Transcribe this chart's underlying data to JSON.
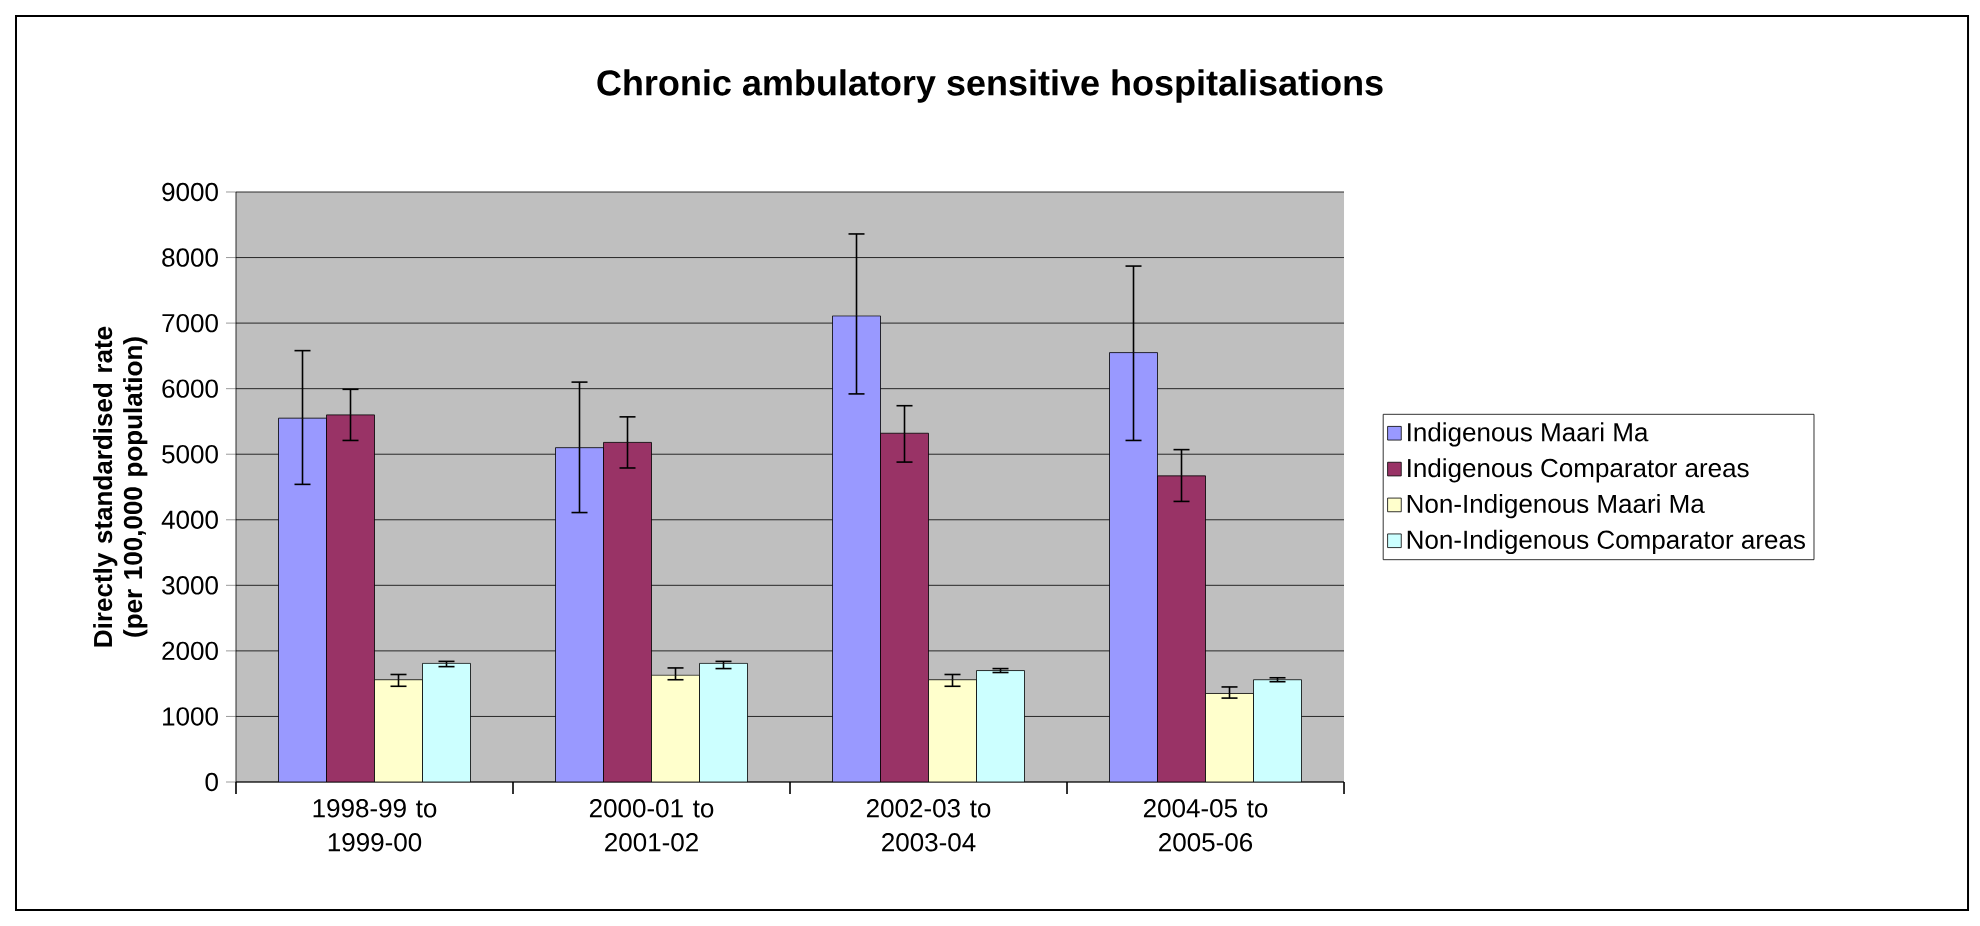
{
  "chart_data": {
    "type": "bar",
    "title": "Chronic ambulatory sensitive hospitalisations",
    "ylabel": "Directly standardised rate (per 100,000 population)",
    "categories": [
      "1998-99 to 1999-00",
      "2000-01 to 2001-02",
      "2002-03 to 2003-04",
      "2004-05 to 2005-06"
    ],
    "series": [
      {
        "name": "Indigenous Maari Ma",
        "color": "#9999ff",
        "values": [
          5550,
          5100,
          7110,
          6550
        ],
        "errors": [
          [
            4540,
            6580
          ],
          [
            4110,
            6100
          ],
          [
            5920,
            8360
          ],
          [
            5210,
            7870
          ]
        ]
      },
      {
        "name": "Indigenous Comparator areas",
        "color": "#993366",
        "values": [
          5600,
          5180,
          5320,
          4670
        ],
        "errors": [
          [
            5210,
            5990
          ],
          [
            4790,
            5570
          ],
          [
            4880,
            5740
          ],
          [
            4280,
            5070
          ]
        ]
      },
      {
        "name": "Non-Indigenous Maari Ma",
        "color": "#ffffcc",
        "values": [
          1560,
          1630,
          1560,
          1350
        ],
        "errors": [
          [
            1460,
            1640
          ],
          [
            1560,
            1740
          ],
          [
            1460,
            1640
          ],
          [
            1280,
            1450
          ]
        ]
      },
      {
        "name": "Non-Indigenous Comparator areas",
        "color": "#ccffff",
        "values": [
          1810,
          1810,
          1700,
          1560
        ],
        "errors": [
          [
            1760,
            1840
          ],
          [
            1730,
            1840
          ],
          [
            1670,
            1730
          ],
          [
            1530,
            1590
          ]
        ]
      }
    ],
    "ylim": [
      0,
      9000
    ],
    "yticks": [
      0,
      1000,
      2000,
      3000,
      4000,
      5000,
      6000,
      7000,
      8000,
      9000
    ],
    "grid": "y",
    "legend": "right"
  }
}
